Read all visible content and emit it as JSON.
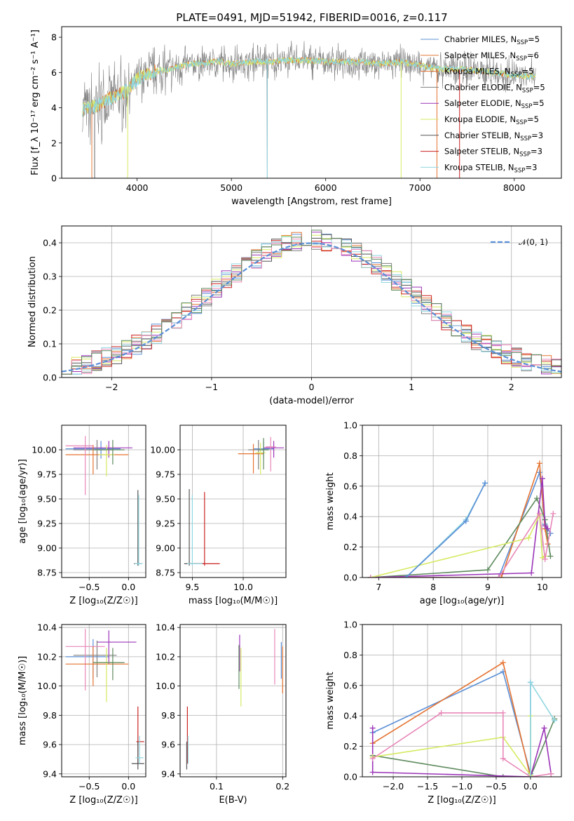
{
  "figure": {
    "title": "PLATE=0491, MJD=51942, FIBERID=0016, z=0.117"
  },
  "colors": {
    "chabrier_miles": "#5b8fd6",
    "salpeter_miles": "#e27a39",
    "kroupa_miles": "#e57331",
    "chabrier_elodie": "#7f7f7f",
    "salpeter_elodie": "#9b34b8",
    "kroupa_elodie": "#d6ea62",
    "chabrier_stelib": "#555555",
    "salpeter_stelib": "#cc2222",
    "kroupa_stelib": "#8fd6e0",
    "pink": "#e887b8",
    "green": "#5e8a5e",
    "normal": "#5b8fd6"
  },
  "chart_data": [
    {
      "id": "spectrum",
      "type": "line",
      "title": "PLATE=0491, MJD=51942, FIBERID=0016, z=0.117",
      "xlabel": "wavelength [Angstrom, rest frame]",
      "ylabel": "Flux [f_λ 10⁻¹⁷ erg cm⁻² s⁻¹ A⁻¹]",
      "xlim": [
        3200,
        8500
      ],
      "ylim": [
        0,
        8.6
      ],
      "xticks": [
        "4000",
        "5000",
        "6000",
        "7000",
        "8000"
      ],
      "yticks": [
        "0",
        "2",
        "4",
        "6",
        "8"
      ],
      "grid": false,
      "legend": "top-right",
      "series": [
        {
          "name": "Chabrier MILES, N_SSP=5",
          "label_main": "Chabrier MILES, N",
          "label_sub": "SSP",
          "label_tail": "=5",
          "color": "#5b8fd6"
        },
        {
          "name": "Salpeter MILES, N_SSP=6",
          "label_main": "Salpeter MILES, N",
          "label_sub": "SSP",
          "label_tail": "=6",
          "color": "#e27a39"
        },
        {
          "name": "Kroupa MILES, N_SSP=5",
          "label_main": "Kroupa MILES, N",
          "label_sub": "SSP",
          "label_tail": "=5",
          "color": "#e57331"
        },
        {
          "name": "Chabrier ELODIE, N_SSP=5",
          "label_main": "Chabrier ELODIE, N",
          "label_sub": "SSP",
          "label_tail": "=5",
          "color": "#7f7f7f"
        },
        {
          "name": "Salpeter ELODIE, N_SSP=5",
          "label_main": "Salpeter ELODIE, N",
          "label_sub": "SSP",
          "label_tail": "=5",
          "color": "#9b34b8"
        },
        {
          "name": "Kroupa ELODIE, N_SSP=5",
          "label_main": "Kroupa ELODIE, N",
          "label_sub": "SSP",
          "label_tail": "=5",
          "color": "#d6ea62"
        },
        {
          "name": "Chabrier STELIB, N_SSP=3",
          "label_main": "Chabrier STELIB, N",
          "label_sub": "SSP",
          "label_tail": "=3",
          "color": "#555555"
        },
        {
          "name": "Salpeter STELIB, N_SSP=3",
          "label_main": "Salpeter STELIB, N",
          "label_sub": "SSP",
          "label_tail": "=3",
          "color": "#cc2222"
        },
        {
          "name": "Kroupa STELIB, N_SSP=3",
          "label_main": "Kroupa STELIB, N",
          "label_sub": "SSP",
          "label_tail": "=3",
          "color": "#8fd6e0"
        }
      ],
      "continuum": {
        "x": [
          3420,
          3500,
          3600,
          3700,
          3800,
          3900,
          4000,
          4100,
          4200,
          4300,
          4400,
          4500,
          4600,
          4700,
          4800,
          4900,
          5000,
          5200,
          5400,
          5600,
          5800,
          6000,
          6200,
          6400,
          6600,
          6800,
          7000,
          7200,
          7400,
          7600,
          7800,
          8000,
          8200
        ],
        "y": [
          3.9,
          4.0,
          4.2,
          4.5,
          4.7,
          5.0,
          5.6,
          5.9,
          6.1,
          6.1,
          6.3,
          6.4,
          6.5,
          6.5,
          6.6,
          6.6,
          6.5,
          6.6,
          6.6,
          6.7,
          6.7,
          6.6,
          6.6,
          6.6,
          6.5,
          6.6,
          6.4,
          6.2,
          6.2,
          6.1,
          6.0,
          5.8,
          5.8
        ]
      }
    },
    {
      "id": "residuals",
      "type": "bar",
      "xlabel": "(data-model)/error",
      "ylabel": "Normed distribution",
      "xlim": [
        -2.5,
        2.5
      ],
      "ylim": [
        0,
        0.45
      ],
      "xticks": [
        "−2",
        "−1",
        "0",
        "1",
        "2"
      ],
      "yticks": [
        "0.0",
        "0.1",
        "0.2",
        "0.3",
        "0.4"
      ],
      "grid": true,
      "legend": "top-right",
      "legend_label": "𝒩(0, 1)",
      "normal_curve": {
        "mean": 0,
        "sigma": 1
      }
    },
    {
      "id": "z-age",
      "type": "scatter",
      "xlabel": "Z [log₁₀(Z/Z☉)]",
      "ylabel": "age  [log₁₀(age/yr)]",
      "xlim": [
        -0.85,
        0.22
      ],
      "ylim": [
        8.7,
        10.25
      ],
      "xticks": [
        "−0.5",
        "0.0"
      ],
      "yticks": [
        "8.75",
        "9.00",
        "9.25",
        "9.50",
        "9.75",
        "10.00"
      ],
      "grid": true,
      "points": [
        {
          "x": -0.35,
          "y": 10.01,
          "xerr": [
            0.45,
            0.25
          ],
          "yerr": [
            0.1,
            0.08
          ],
          "color": "#5b8fd6"
        },
        {
          "x": -0.25,
          "y": 10.02,
          "xerr": [
            0.45,
            0.3
          ],
          "yerr": [
            0.1,
            0.07
          ],
          "color": "#9b34b8"
        },
        {
          "x": -0.4,
          "y": 10.0,
          "xerr": [
            0.3,
            0.2
          ],
          "yerr": [
            0.2,
            0.1
          ],
          "color": "#7f7f7f"
        },
        {
          "x": -0.45,
          "y": 9.95,
          "xerr": [
            0.35,
            0.45
          ],
          "yerr": [
            0.2,
            0.1
          ],
          "color": "#e57331"
        },
        {
          "x": -0.55,
          "y": 10.04,
          "xerr": [
            0.25,
            0.1
          ],
          "yerr": [
            0.5,
            0.1
          ],
          "color": "#e887b8"
        },
        {
          "x": -0.28,
          "y": 9.95,
          "xerr": [
            0.1,
            0.1
          ],
          "yerr": [
            0.22,
            0.1
          ],
          "color": "#d6ea62"
        },
        {
          "x": -0.2,
          "y": 10.0,
          "xerr": [
            0.25,
            0.15
          ],
          "yerr": [
            0.15,
            0.1
          ],
          "color": "#5e8a5e"
        },
        {
          "x": 0.12,
          "y": 8.84,
          "xerr": [
            0.05,
            0.05
          ],
          "yerr": [
            0.02,
            0.75
          ],
          "color": "#555555"
        },
        {
          "x": 0.13,
          "y": 8.84,
          "xerr": [
            0.05,
            0.05
          ],
          "yerr": [
            0.02,
            0.7
          ],
          "color": "#8fd6e0"
        }
      ]
    },
    {
      "id": "mass-age",
      "type": "scatter",
      "xlabel": "mass [log₁₀(M/M☉)]",
      "ylabel": "",
      "xlim": [
        9.38,
        10.42
      ],
      "ylim": [
        8.7,
        10.25
      ],
      "xticks": [
        "9.5",
        "10.0"
      ],
      "yticks": [
        "8.75",
        "9.00",
        "9.25",
        "9.50",
        "9.75",
        "10.00"
      ],
      "grid": true,
      "points": [
        {
          "x": 10.2,
          "y": 10.01,
          "xerr": [
            0.1,
            0.1
          ],
          "yerr": [
            0.1,
            0.08
          ],
          "color": "#5b8fd6"
        },
        {
          "x": 10.3,
          "y": 10.02,
          "xerr": [
            0.1,
            0.1
          ],
          "yerr": [
            0.1,
            0.07
          ],
          "color": "#9b34b8"
        },
        {
          "x": 10.15,
          "y": 10.0,
          "xerr": [
            0.1,
            0.1
          ],
          "yerr": [
            0.2,
            0.1
          ],
          "color": "#7f7f7f"
        },
        {
          "x": 10.1,
          "y": 9.96,
          "xerr": [
            0.15,
            0.1
          ],
          "yerr": [
            0.2,
            0.1
          ],
          "color": "#e57331"
        },
        {
          "x": 10.27,
          "y": 10.03,
          "xerr": [
            0.05,
            0.05
          ],
          "yerr": [
            0.25,
            0.1
          ],
          "color": "#e887b8"
        },
        {
          "x": 10.17,
          "y": 9.97,
          "xerr": [
            0.05,
            0.05
          ],
          "yerr": [
            0.22,
            0.1
          ],
          "color": "#d6ea62"
        },
        {
          "x": 10.2,
          "y": 10.0,
          "xerr": [
            0.05,
            0.05
          ],
          "yerr": [
            0.2,
            0.12
          ],
          "color": "#5e8a5e"
        },
        {
          "x": 9.47,
          "y": 8.84,
          "xerr": [
            0.05,
            0.15
          ],
          "yerr": [
            0.02,
            0.76
          ],
          "color": "#555555"
        },
        {
          "x": 9.62,
          "y": 8.84,
          "xerr": [
            0.15,
            0.15
          ],
          "yerr": [
            0.02,
            0.73
          ],
          "color": "#cc2222"
        },
        {
          "x": 9.5,
          "y": 8.84,
          "xerr": [
            0.05,
            0.1
          ],
          "yerr": [
            0.02,
            0.7
          ],
          "color": "#8fd6e0"
        }
      ]
    },
    {
      "id": "age-weight",
      "type": "line",
      "xlabel": "age  [log₁₀(age/yr)]",
      "ylabel": "mass weight",
      "xlim": [
        6.7,
        10.35
      ],
      "ylim": [
        0,
        1.0
      ],
      "xticks": [
        "7",
        "8",
        "9",
        "10"
      ],
      "yticks": [
        "0.0",
        "0.2",
        "0.4",
        "0.6",
        "0.8",
        "1.0"
      ],
      "grid": true,
      "series": [
        {
          "color": "#5b8fd6",
          "x": [
            6.85,
            9.2,
            9.95,
            10.05,
            10.15
          ],
          "y": [
            0,
            0,
            0.69,
            0.35,
            0.29
          ]
        },
        {
          "color": "#e57331",
          "x": [
            6.85,
            9.25,
            9.95,
            10.05,
            10.1
          ],
          "y": [
            0,
            0,
            0.75,
            0.32,
            0.22
          ]
        },
        {
          "color": "#5e8a5e",
          "x": [
            6.85,
            9.0,
            9.9,
            10.05,
            10.15
          ],
          "y": [
            0,
            0.05,
            0.52,
            0.38,
            0.14
          ]
        },
        {
          "color": "#9b34b8",
          "x": [
            6.85,
            9.8,
            10.0,
            10.05,
            10.1
          ],
          "y": [
            0,
            0.03,
            0.65,
            0.34,
            0.32
          ]
        },
        {
          "color": "#d6ea62",
          "x": [
            6.85,
            9.75,
            9.95,
            10.0,
            10.05
          ],
          "y": [
            0,
            0.26,
            0.41,
            0.13,
            0.14
          ]
        },
        {
          "color": "#e887b8",
          "x": [
            6.85,
            9.2,
            9.95,
            10.05,
            10.2
          ],
          "y": [
            0,
            0,
            0.42,
            0.12,
            0.42
          ]
        },
        {
          "color": "#8fd6e0",
          "x": [
            7.5,
            8.6,
            8.95
          ],
          "y": [
            0,
            0.38,
            0.62
          ]
        },
        {
          "color": "#5b8fd6",
          "x": [
            7.5,
            8.6,
            8.95
          ],
          "y": [
            0,
            0.37,
            0.62
          ]
        }
      ]
    },
    {
      "id": "z-mass",
      "type": "scatter",
      "xlabel": "Z [log₁₀(Z/Z☉)]",
      "ylabel": "mass [log₁₀(M/M☉)]",
      "xlim": [
        -0.85,
        0.22
      ],
      "ylim": [
        9.38,
        10.42
      ],
      "xticks": [
        "−0.5",
        "0.0"
      ],
      "yticks": [
        "9.4",
        "9.6",
        "9.8",
        "10.0",
        "10.2",
        "10.4"
      ],
      "grid": true,
      "points": [
        {
          "x": -0.45,
          "y": 10.2,
          "xerr": [
            0.35,
            0.2
          ],
          "yerr": [
            0.15,
            0.12
          ],
          "color": "#5b8fd6"
        },
        {
          "x": -0.25,
          "y": 10.3,
          "xerr": [
            0.15,
            0.35
          ],
          "yerr": [
            0.15,
            0.08
          ],
          "color": "#9b34b8"
        },
        {
          "x": -0.4,
          "y": 10.21,
          "xerr": [
            0.3,
            0.25
          ],
          "yerr": [
            0.15,
            0.1
          ],
          "color": "#7f7f7f"
        },
        {
          "x": -0.55,
          "y": 10.27,
          "xerr": [
            0.25,
            0.25
          ],
          "yerr": [
            0.3,
            0.12
          ],
          "color": "#e887b8"
        },
        {
          "x": -0.45,
          "y": 10.15,
          "xerr": [
            0.35,
            0.45
          ],
          "yerr": [
            0.15,
            0.12
          ],
          "color": "#e57331"
        },
        {
          "x": -0.28,
          "y": 10.16,
          "xerr": [
            0.15,
            0.1
          ],
          "yerr": [
            0.27,
            0.1
          ],
          "color": "#d6ea62"
        },
        {
          "x": -0.2,
          "y": 10.16,
          "xerr": [
            0.25,
            0.15
          ],
          "yerr": [
            0.12,
            0.1
          ],
          "color": "#5e8a5e"
        },
        {
          "x": 0.12,
          "y": 9.62,
          "xerr": [
            0.02,
            0.08
          ],
          "yerr": [
            0.15,
            0.24
          ],
          "color": "#cc2222"
        },
        {
          "x": 0.12,
          "y": 9.47,
          "xerr": [
            0.08,
            0.08
          ],
          "yerr": [
            0.04,
            0.15
          ],
          "color": "#555555"
        },
        {
          "x": 0.14,
          "y": 9.51,
          "xerr": [
            0.05,
            0.05
          ],
          "yerr": [
            0.04,
            0.15
          ],
          "color": "#8fd6e0"
        }
      ]
    },
    {
      "id": "ebv-mass",
      "type": "scatter",
      "xlabel": "E(B-V)",
      "ylabel": "",
      "xlim": [
        0.045,
        0.205
      ],
      "ylim": [
        9.38,
        10.42
      ],
      "xticks": [
        "0.1",
        "0.2"
      ],
      "yticks": [
        "9.4",
        "9.6",
        "9.8",
        "10.0",
        "10.2",
        "10.4"
      ],
      "grid": true,
      "points": [
        {
          "x": 0.198,
          "y": 10.2,
          "yerr": [
            0.15,
            0.1
          ],
          "color": "#5b8fd6"
        },
        {
          "x": 0.135,
          "y": 10.25,
          "yerr": [
            0.15,
            0.1
          ],
          "color": "#9b34b8"
        },
        {
          "x": 0.188,
          "y": 10.21,
          "yerr": [
            0.2,
            0.18
          ],
          "color": "#e887b8"
        },
        {
          "x": 0.2,
          "y": 10.15,
          "yerr": [
            0.2,
            0.12
          ],
          "color": "#e57331"
        },
        {
          "x": 0.137,
          "y": 10.16,
          "yerr": [
            0.3,
            0.1
          ],
          "color": "#d6ea62"
        },
        {
          "x": 0.134,
          "y": 10.18,
          "yerr": [
            0.2,
            0.1
          ],
          "color": "#5e8a5e"
        },
        {
          "x": 0.056,
          "y": 9.62,
          "yerr": [
            0.15,
            0.24
          ],
          "color": "#cc2222"
        },
        {
          "x": 0.055,
          "y": 9.47,
          "yerr": [
            0.04,
            0.15
          ],
          "color": "#555555"
        },
        {
          "x": 0.057,
          "y": 9.51,
          "yerr": [
            0.04,
            0.15
          ],
          "color": "#8fd6e0"
        }
      ]
    },
    {
      "id": "z-weight",
      "type": "line",
      "xlabel": "Z [log₁₀(Z/Z☉)]",
      "ylabel": "mass weight",
      "xlim": [
        -2.45,
        0.45
      ],
      "ylim": [
        0,
        1.0
      ],
      "xticks": [
        "−2.0",
        "−1.5",
        "−1.0",
        "−0.5",
        "0.0"
      ],
      "yticks": [
        "0.0",
        "0.2",
        "0.4",
        "0.6",
        "0.8",
        "1.0"
      ],
      "grid": true,
      "series": [
        {
          "color": "#5b8fd6",
          "x": [
            -2.3,
            -0.4,
            0.0,
            0.0
          ],
          "y": [
            0.29,
            0.69,
            0.02,
            0.62
          ]
        },
        {
          "color": "#e57331",
          "x": [
            -2.3,
            -0.4,
            0.0
          ],
          "y": [
            0.22,
            0.75,
            0.0
          ]
        },
        {
          "color": "#5e8a5e",
          "x": [
            -2.3,
            -0.4,
            0.0,
            0.35
          ],
          "y": [
            0.14,
            0.0,
            0.0,
            0.38
          ]
        },
        {
          "color": "#9b34b8",
          "x": [
            -2.3,
            -2.3,
            0.0,
            0.2,
            0.3
          ],
          "y": [
            0.32,
            0.03,
            0.0,
            0.32,
            0.02
          ]
        },
        {
          "color": "#d6ea62",
          "x": [
            -2.3,
            -0.4,
            0.0,
            0.0
          ],
          "y": [
            0.13,
            0.26,
            0.01,
            0.4
          ]
        },
        {
          "color": "#e887b8",
          "x": [
            -2.3,
            -1.3,
            -0.4,
            -0.4,
            0.0,
            0.3
          ],
          "y": [
            0.12,
            0.42,
            0.42,
            0.12,
            0.0,
            0.02
          ]
        },
        {
          "color": "#8fd6e0",
          "x": [
            0.0,
            0.0,
            0.35
          ],
          "y": [
            0.0,
            0.62,
            0.37
          ]
        }
      ]
    }
  ]
}
